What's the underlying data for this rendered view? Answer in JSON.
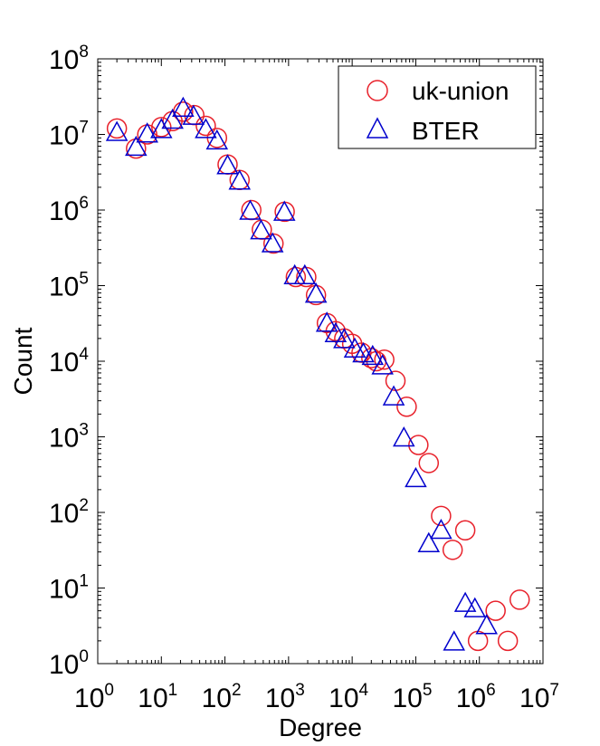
{
  "chart_data": {
    "type": "scatter",
    "xscale": "log",
    "yscale": "log",
    "xlabel": "Degree",
    "ylabel": "Count",
    "xlim": [
      1,
      10000000
    ],
    "ylim": [
      1,
      100000000
    ],
    "xticks": [
      {
        "base": "10",
        "exp": "0",
        "value": 1
      },
      {
        "base": "10",
        "exp": "1",
        "value": 10
      },
      {
        "base": "10",
        "exp": "2",
        "value": 100
      },
      {
        "base": "10",
        "exp": "3",
        "value": 1000
      },
      {
        "base": "10",
        "exp": "4",
        "value": 10000
      },
      {
        "base": "10",
        "exp": "5",
        "value": 100000
      },
      {
        "base": "10",
        "exp": "6",
        "value": 1000000
      },
      {
        "base": "10",
        "exp": "7",
        "value": 10000000
      }
    ],
    "yticks": [
      {
        "base": "10",
        "exp": "0",
        "value": 1
      },
      {
        "base": "10",
        "exp": "1",
        "value": 10
      },
      {
        "base": "10",
        "exp": "2",
        "value": 100
      },
      {
        "base": "10",
        "exp": "3",
        "value": 1000
      },
      {
        "base": "10",
        "exp": "4",
        "value": 10000
      },
      {
        "base": "10",
        "exp": "5",
        "value": 100000
      },
      {
        "base": "10",
        "exp": "6",
        "value": 1000000
      },
      {
        "base": "10",
        "exp": "7",
        "value": 10000000
      },
      {
        "base": "10",
        "exp": "8",
        "value": 100000000
      }
    ],
    "grid": false,
    "legend_position": "top-right",
    "series": [
      {
        "name": "uk-union",
        "marker": "circle",
        "color": "#e8202a",
        "points": [
          [
            2,
            12000000
          ],
          [
            4,
            6500000
          ],
          [
            6,
            10000000
          ],
          [
            10,
            12500000
          ],
          [
            15,
            15000000
          ],
          [
            22,
            20000000
          ],
          [
            33,
            18000000
          ],
          [
            50,
            13000000
          ],
          [
            75,
            9000000
          ],
          [
            110,
            4000000
          ],
          [
            170,
            2500000
          ],
          [
            260,
            1000000
          ],
          [
            380,
            550000
          ],
          [
            580,
            360000
          ],
          [
            870,
            950000
          ],
          [
            1300,
            130000
          ],
          [
            1900,
            130000
          ],
          [
            2700,
            75000
          ],
          [
            4000,
            32000
          ],
          [
            5500,
            25000
          ],
          [
            7500,
            20000
          ],
          [
            10000,
            17000
          ],
          [
            14000,
            13000
          ],
          [
            20000,
            11000
          ],
          [
            24000,
            10000
          ],
          [
            32000,
            10500
          ],
          [
            48000,
            5500
          ],
          [
            72000,
            2500
          ],
          [
            110000,
            780
          ],
          [
            160000,
            450
          ],
          [
            250000,
            90
          ],
          [
            380000,
            32
          ],
          [
            600000,
            58
          ],
          [
            950000,
            2
          ],
          [
            1800000,
            5
          ],
          [
            2800000,
            2
          ],
          [
            4300000,
            7
          ]
        ]
      },
      {
        "name": "BTER",
        "marker": "triangle",
        "color": "#0000cd",
        "points": [
          [
            2,
            11000000
          ],
          [
            4,
            7000000
          ],
          [
            6,
            10500000
          ],
          [
            10,
            12000000
          ],
          [
            15,
            16000000
          ],
          [
            22,
            23000000
          ],
          [
            32,
            18000000
          ],
          [
            50,
            12000000
          ],
          [
            75,
            8500000
          ],
          [
            110,
            4000000
          ],
          [
            170,
            2500000
          ],
          [
            250,
            1000000
          ],
          [
            370,
            550000
          ],
          [
            560,
            370000
          ],
          [
            860,
            970000
          ],
          [
            1250,
            140000
          ],
          [
            1800,
            140000
          ],
          [
            2700,
            80000
          ],
          [
            4000,
            33000
          ],
          [
            5500,
            24000
          ],
          [
            7500,
            20000
          ],
          [
            11000,
            15000
          ],
          [
            15000,
            13000
          ],
          [
            21000,
            12000
          ],
          [
            30000,
            9000
          ],
          [
            45000,
            3500
          ],
          [
            65000,
            1000
          ],
          [
            100000,
            290
          ],
          [
            160000,
            40
          ],
          [
            250000,
            60
          ],
          [
            400000,
            2
          ],
          [
            600000,
            6.5
          ],
          [
            850000,
            5.5
          ],
          [
            1300000,
            3.3
          ]
        ]
      }
    ]
  }
}
